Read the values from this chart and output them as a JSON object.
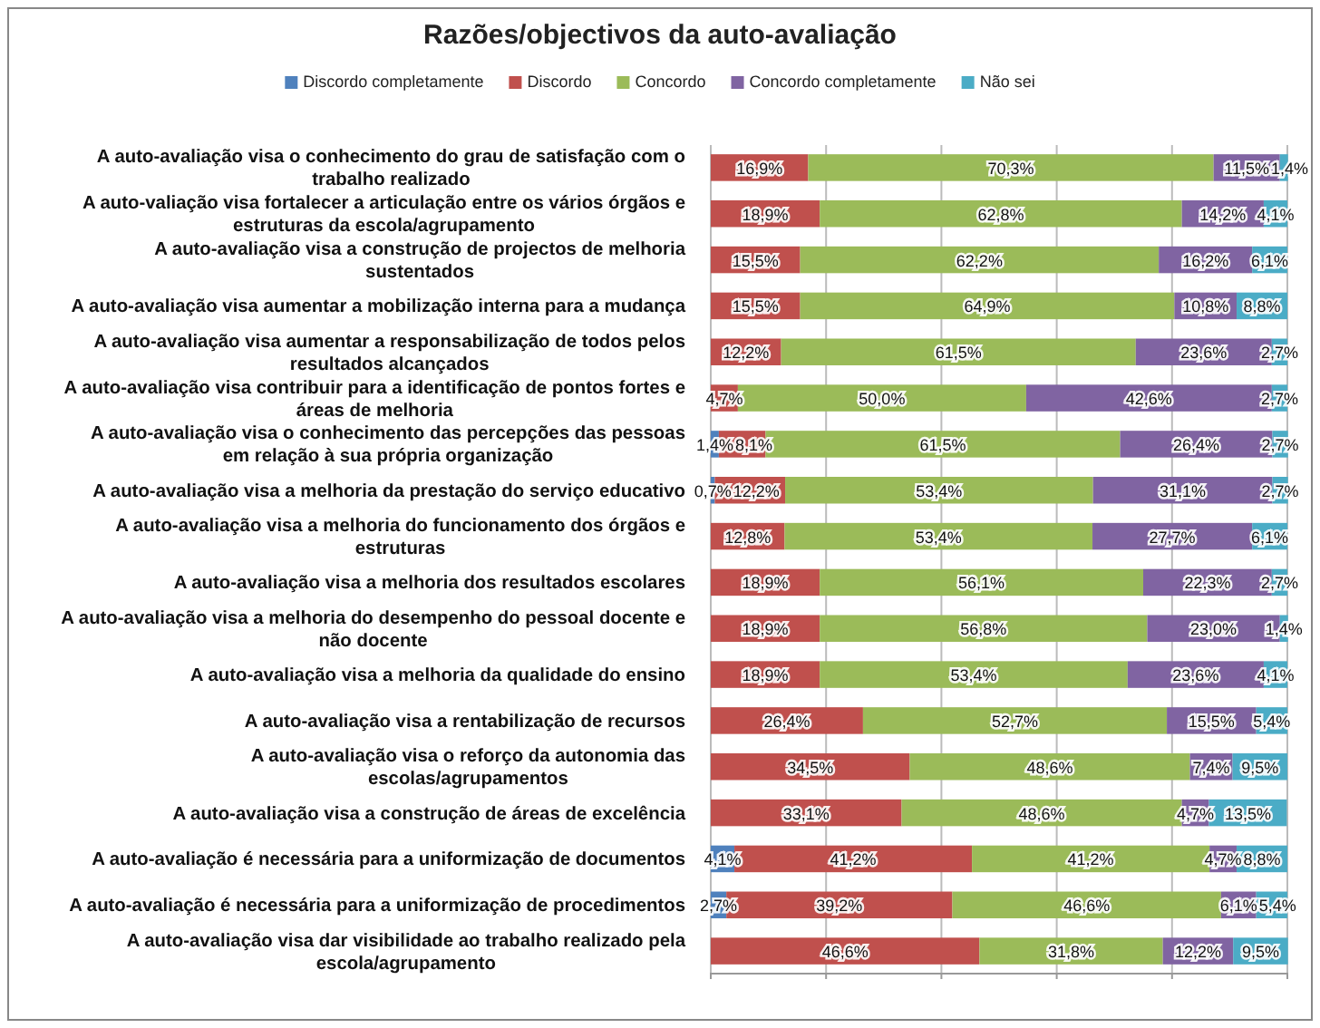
{
  "chart_data": {
    "type": "bar",
    "orientation": "horizontal",
    "stacked": true,
    "title": "Razões/objectivos da auto-avaliação",
    "legend": "top",
    "grid": "x",
    "tick_labels": "y",
    "xlim": [
      0,
      100
    ],
    "xticks": [
      {
        "value": 0,
        "label": null
      },
      {
        "value": 20,
        "label": null
      },
      {
        "value": 40,
        "label": null
      },
      {
        "value": 60,
        "label": null
      },
      {
        "value": 80,
        "label": null
      },
      {
        "value": 100,
        "label": null
      }
    ],
    "categories": [
      "A auto-avaliação visa o conhecimento do grau de satisfação com o trabalho realizado",
      "A auto-valiação visa fortalecer a articulação entre os vários órgãos e estruturas da escola/agrupamento",
      "A auto-avaliação visa a construção de projectos de melhoria sustentados",
      "A auto-avaliação visa aumentar a mobilização interna para a mudança",
      "A auto-avaliação visa aumentar a responsabilização de todos pelos resultados alcançados",
      "A auto-avaliação visa contribuir para a identificação de pontos fortes e áreas de melhoria",
      "A auto-avaliação visa o conhecimento das percepções das pessoas em relação à sua própria organização",
      "A auto-avaliação visa a melhoria da prestação do serviço educativo",
      "A auto-avaliação visa a melhoria do funcionamento dos órgãos e estruturas",
      "A auto-avaliação visa a melhoria dos resultados escolares",
      "A auto-avaliação visa a melhoria do desempenho do pessoal docente e não docente",
      "A auto-avaliação visa a melhoria da qualidade do ensino",
      "A auto-avaliação visa a rentabilização de recursos",
      "A auto-avaliação visa o reforço da autonomia das escolas/agrupamentos",
      "A auto-avaliação visa a construção de áreas de excelência",
      "A auto-avaliação é necessária para a uniformização de documentos",
      "A auto-avaliação é necessária para a uniformização de procedimentos",
      "A auto-avaliação visa dar visibilidade ao trabalho realizado pela escola/agrupamento"
    ],
    "series": [
      {
        "name": "Discordo completamente",
        "color": "#4f81bd",
        "values": [
          null,
          null,
          null,
          null,
          null,
          null,
          1.4,
          0.7,
          null,
          null,
          null,
          null,
          null,
          null,
          null,
          4.1,
          2.7,
          null
        ],
        "value_labels": [
          null,
          null,
          null,
          null,
          null,
          null,
          "1,4%",
          "0,7%",
          null,
          null,
          null,
          null,
          null,
          null,
          null,
          "4,1%",
          "2,7%",
          null
        ]
      },
      {
        "name": "Discordo",
        "color": "#c0504d",
        "values": [
          16.9,
          18.9,
          15.5,
          15.5,
          12.2,
          4.7,
          8.1,
          12.2,
          12.8,
          18.9,
          18.9,
          18.9,
          26.4,
          34.5,
          33.1,
          41.2,
          39.2,
          46.6
        ],
        "value_labels": [
          "16,9%",
          "18,9%",
          "15,5%",
          "15,5%",
          "12,2%",
          "4,7%",
          "8,1%",
          "12,2%",
          "12,8%",
          "18,9%",
          "18,9%",
          "18,9%",
          "26,4%",
          "34,5%",
          "33,1%",
          "41,2%",
          "39,2%",
          "46,6%"
        ]
      },
      {
        "name": "Concordo",
        "color": "#9bbb59",
        "values": [
          70.3,
          62.8,
          62.2,
          64.9,
          61.5,
          50.0,
          61.5,
          53.4,
          53.4,
          56.1,
          56.8,
          53.4,
          52.7,
          48.6,
          48.6,
          41.2,
          46.6,
          31.8
        ],
        "value_labels": [
          "70,3%",
          "62,8%",
          "62,2%",
          "64,9%",
          "61,5%",
          "50,0%",
          "61,5%",
          "53,4%",
          "53,4%",
          "56,1%",
          "56,8%",
          "53,4%",
          "52,7%",
          "48,6%",
          "48,6%",
          "41,2%",
          "46,6%",
          "31,8%"
        ]
      },
      {
        "name": "Concordo completamente",
        "color": "#8064a2",
        "values": [
          11.5,
          14.2,
          16.2,
          10.8,
          23.6,
          42.6,
          26.4,
          31.1,
          27.7,
          22.3,
          23.0,
          23.6,
          15.5,
          7.4,
          4.7,
          4.7,
          6.1,
          12.2
        ],
        "value_labels": [
          "11,5%",
          "14,2%",
          "16,2%",
          "10,8%",
          "23,6%",
          "42,6%",
          "26,4%",
          "31,1%",
          "27,7%",
          "22,3%",
          "23,0%",
          "23,6%",
          "15,5%",
          "7,4%",
          "4,7%",
          "4,7%",
          "6,1%",
          "12,2%"
        ]
      },
      {
        "name": "Não sei",
        "color": "#4bacc6",
        "values": [
          1.4,
          4.1,
          6.1,
          8.8,
          2.7,
          2.7,
          2.7,
          2.7,
          6.1,
          2.7,
          1.4,
          4.1,
          5.4,
          9.5,
          13.5,
          8.8,
          5.4,
          9.5
        ],
        "value_labels": [
          "1,4%",
          "4,1%",
          "6,1%",
          "8,8%",
          "2,7%",
          "2,7%",
          "2,7%",
          "2,7%",
          "6,1%",
          "2,7%",
          "1,4%",
          "4,1%",
          "5,4%",
          "9,5%",
          "13,5%",
          "8,8%",
          "5,4%",
          "9,5%"
        ]
      }
    ]
  }
}
